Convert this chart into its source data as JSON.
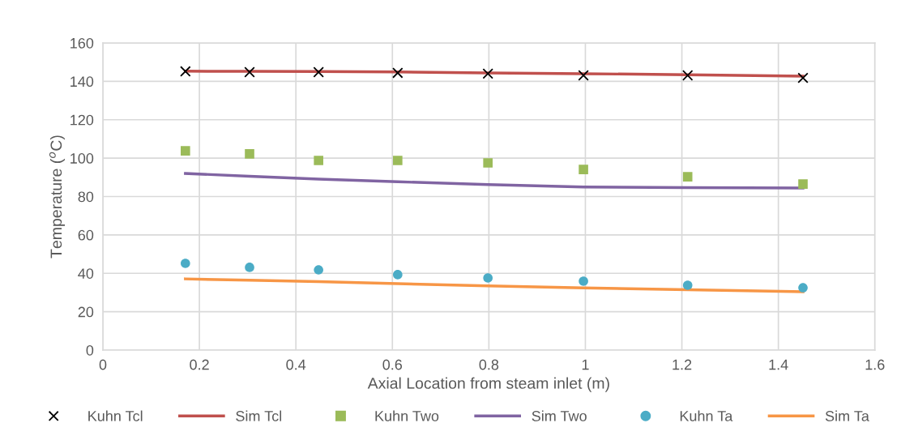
{
  "chart_data": {
    "type": "scatter",
    "xlabel": "Axial Location from steam inlet (m)",
    "ylabel": "Temperature ($^{o}$C)",
    "x": [
      0.171,
      0.304,
      0.447,
      0.611,
      0.798,
      0.996,
      1.212,
      1.451
    ],
    "series": [
      {
        "name": "Kuhn Tcl",
        "marker": "cross",
        "color": "#000000",
        "values": [
          145.2,
          144.8,
          144.8,
          144.4,
          144.0,
          143.1,
          143.1,
          141.8
        ]
      },
      {
        "name": "Sim Tcl",
        "type": "line",
        "marker": "none",
        "color": "#c0504d",
        "values": [
          145.3,
          145.2,
          145.1,
          144.9,
          144.4,
          144.0,
          143.4,
          142.7
        ]
      },
      {
        "name": "Kuhn Two",
        "marker": "square",
        "color": "#9bbb59",
        "values": [
          103.8,
          102.2,
          98.8,
          98.8,
          97.5,
          94.1,
          90.3,
          86.5
        ]
      },
      {
        "name": "Sim Two",
        "type": "line",
        "marker": "none",
        "color": "#8064a2",
        "values": [
          92.0,
          90.6,
          89.1,
          87.7,
          86.2,
          85.0,
          84.6,
          84.4
        ]
      },
      {
        "name": "Kuhn Ta",
        "marker": "circle",
        "color": "#4bacc6",
        "values": [
          45.2,
          43.1,
          41.8,
          39.3,
          37.6,
          35.9,
          33.8,
          32.5
        ]
      },
      {
        "name": "Sim Ta",
        "type": "line",
        "marker": "none",
        "color": "#f79646",
        "values": [
          37.1,
          36.4,
          35.7,
          34.6,
          33.5,
          32.4,
          31.5,
          30.4
        ]
      }
    ],
    "xlim": [
      0,
      1.6
    ],
    "xticks": [
      0,
      0.2,
      0.4,
      0.6,
      0.8,
      1,
      1.2,
      1.4,
      1.6
    ],
    "ylim": [
      0,
      160
    ],
    "yticks": [
      0,
      20,
      40,
      60,
      80,
      100,
      120,
      140,
      160
    ],
    "grid": true,
    "legend": "bottom"
  }
}
